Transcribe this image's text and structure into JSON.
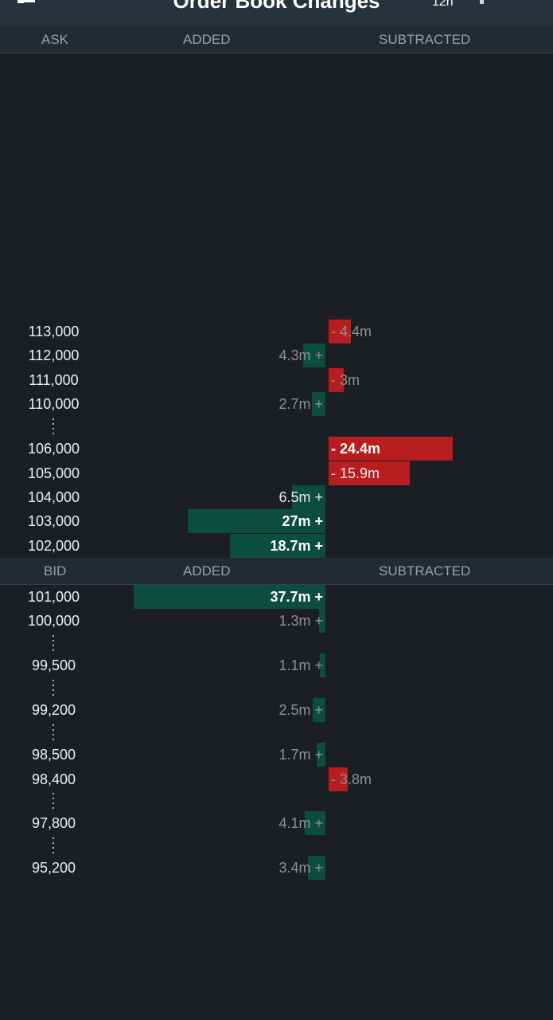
{
  "header": {
    "title": "Order Book Changes",
    "timeframe": "12h"
  },
  "ask_header": {
    "col1": "ASK",
    "col2": "ADDED",
    "col3": "SUBTRACTED"
  },
  "bid_header": {
    "col1": "BID",
    "col2": "ADDED",
    "col3": "SUBTRACTED"
  },
  "colors": {
    "added": "#0d4d3d",
    "subtracted": "#b81d1f",
    "background": "#1b1f24"
  },
  "ask_rows": [
    {
      "price": "113,000",
      "type": "sub",
      "amount": 4.4,
      "label": "- 4.4m"
    },
    {
      "price": "112,000",
      "type": "add",
      "amount": 4.3,
      "label": "4.3m +"
    },
    {
      "price": "111,000",
      "type": "sub",
      "amount": 3,
      "label": "- 3m"
    },
    {
      "price": "110,000",
      "type": "add",
      "amount": 2.7,
      "label": "2.7m +",
      "gap_after": true
    },
    {
      "price": "106,000",
      "type": "sub",
      "amount": 24.4,
      "label": "- 24.4m"
    },
    {
      "price": "105,000",
      "type": "sub",
      "amount": 15.9,
      "label": "- 15.9m"
    },
    {
      "price": "104,000",
      "type": "add",
      "amount": 6.5,
      "label": "6.5m +"
    },
    {
      "price": "103,000",
      "type": "add",
      "amount": 27,
      "label": "27m +"
    },
    {
      "price": "102,000",
      "type": "add",
      "amount": 18.7,
      "label": "18.7m +"
    }
  ],
  "bid_rows": [
    {
      "price": "101,000",
      "type": "add",
      "amount": 37.7,
      "label": "37.7m +"
    },
    {
      "price": "100,000",
      "type": "add",
      "amount": 1.3,
      "label": "1.3m +",
      "gap_after": true
    },
    {
      "price": "99,500",
      "type": "add",
      "amount": 1.1,
      "label": "1.1m +",
      "gap_after": true
    },
    {
      "price": "99,200",
      "type": "add",
      "amount": 2.5,
      "label": "2.5m +",
      "gap_after": true
    },
    {
      "price": "98,500",
      "type": "add",
      "amount": 1.7,
      "label": "1.7m +"
    },
    {
      "price": "98,400",
      "type": "sub",
      "amount": 3.8,
      "label": "- 3.8m",
      "gap_after": true
    },
    {
      "price": "97,800",
      "type": "add",
      "amount": 4.1,
      "label": "4.1m +",
      "gap_after": true
    },
    {
      "price": "95,200",
      "type": "add",
      "amount": 3.4,
      "label": "3.4m +"
    }
  ]
}
